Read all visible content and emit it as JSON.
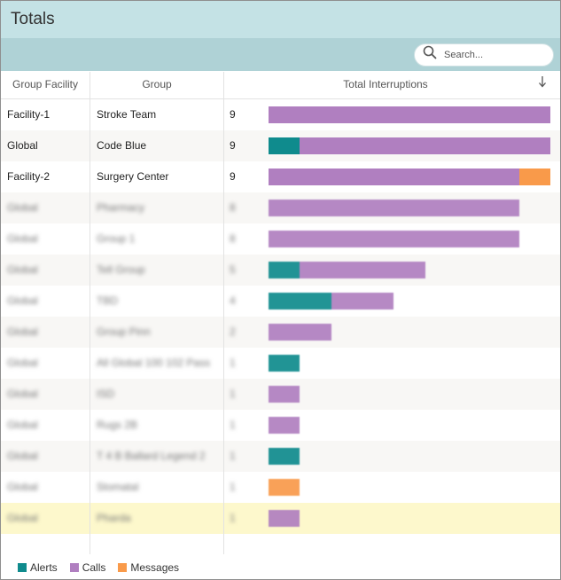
{
  "window": {
    "title": "Totals"
  },
  "search": {
    "placeholder": "Search..."
  },
  "columns": {
    "facility": "Group Facility",
    "group": "Group",
    "total": "Total Interruptions",
    "sort_icon": "arrow-down-icon"
  },
  "colors": {
    "alerts": "#0f8b8d",
    "calls": "#b07fc0",
    "messages": "#f99a4a"
  },
  "max_total": 9,
  "rows": [
    {
      "facility": "Facility-1",
      "group": "Stroke Team",
      "total": "9",
      "alerts": 0,
      "calls": 9,
      "messages": 0,
      "blurred": false,
      "highlight": false
    },
    {
      "facility": "Global",
      "group": "Code Blue",
      "total": "9",
      "alerts": 1,
      "calls": 8,
      "messages": 0,
      "blurred": false,
      "highlight": false
    },
    {
      "facility": "Facility-2",
      "group": "Surgery Center",
      "total": "9",
      "alerts": 0,
      "calls": 8,
      "messages": 1,
      "blurred": false,
      "highlight": false
    },
    {
      "facility": "Global",
      "group": "Pharmacy",
      "total": "8",
      "alerts": 0,
      "calls": 8,
      "messages": 0,
      "blurred": true,
      "highlight": false
    },
    {
      "facility": "Global",
      "group": "Group 1",
      "total": "8",
      "alerts": 0,
      "calls": 8,
      "messages": 0,
      "blurred": true,
      "highlight": false
    },
    {
      "facility": "Global",
      "group": "Tell Group",
      "total": "5",
      "alerts": 1,
      "calls": 4,
      "messages": 0,
      "blurred": true,
      "highlight": false
    },
    {
      "facility": "Global",
      "group": "TBD",
      "total": "4",
      "alerts": 2,
      "calls": 2,
      "messages": 0,
      "blurred": true,
      "highlight": false
    },
    {
      "facility": "Global",
      "group": "Group Pinn",
      "total": "2",
      "alerts": 0,
      "calls": 2,
      "messages": 0,
      "blurred": true,
      "highlight": false
    },
    {
      "facility": "Global",
      "group": "All Global 100 102 Pass",
      "total": "1",
      "alerts": 1,
      "calls": 0,
      "messages": 0,
      "blurred": true,
      "highlight": false
    },
    {
      "facility": "Global",
      "group": "ISD",
      "total": "1",
      "alerts": 0,
      "calls": 1,
      "messages": 0,
      "blurred": true,
      "highlight": false
    },
    {
      "facility": "Global",
      "group": "Rugs 2B",
      "total": "1",
      "alerts": 0,
      "calls": 1,
      "messages": 0,
      "blurred": true,
      "highlight": false
    },
    {
      "facility": "Global",
      "group": "T 4 B Ballard Legend 2",
      "total": "1",
      "alerts": 1,
      "calls": 0,
      "messages": 0,
      "blurred": true,
      "highlight": false
    },
    {
      "facility": "Global",
      "group": "Stomatal",
      "total": "1",
      "alerts": 0,
      "calls": 0,
      "messages": 1,
      "blurred": true,
      "highlight": false
    },
    {
      "facility": "Global",
      "group": "Pharda",
      "total": "1",
      "alerts": 0,
      "calls": 1,
      "messages": 0,
      "blurred": true,
      "highlight": true
    }
  ],
  "legend": [
    {
      "label": "Alerts",
      "color": "#0f8b8d"
    },
    {
      "label": "Calls",
      "color": "#b07fc0"
    },
    {
      "label": "Messages",
      "color": "#f99a4a"
    }
  ]
}
